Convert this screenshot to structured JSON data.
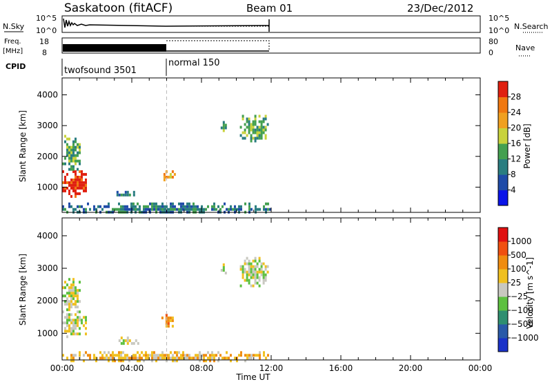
{
  "header": {
    "radar": "Saskatoon (fitACF)",
    "beam": "Beam 01",
    "date": "23/Dec/2012"
  },
  "noise_panel": {
    "left_label": "N.Sky",
    "right_label": "N.Search",
    "left_ticks": [
      "10^5",
      "10^0"
    ],
    "right_ticks": [
      "10^5",
      "10^0"
    ]
  },
  "freq_panel": {
    "left_label_1": "Freq.",
    "left_label_2": "[MHz]",
    "right_label": "Nave",
    "left_ticks": [
      "18",
      "8"
    ],
    "right_ticks": [
      "80",
      "0"
    ]
  },
  "cpid": {
    "label": "CPID",
    "modes": [
      {
        "name": "twofsound 3501",
        "start_h": 0,
        "end_h": 6
      },
      {
        "name": "normal 150",
        "start_h": 6,
        "end_h": 12
      }
    ]
  },
  "chart_data": [
    {
      "type": "heatmap",
      "title": "Power",
      "xlabel": "Time UT",
      "ylabel": "Slant Range [km]",
      "x_ticks": [
        "00:00",
        "04:00",
        "08:00",
        "12:00",
        "16:00",
        "20:00",
        "00:00"
      ],
      "xlim_hours": [
        0,
        24
      ],
      "y_ticks": [
        1000,
        2000,
        3000,
        4000
      ],
      "ylim_km": [
        180,
        4550
      ],
      "colorbar": {
        "label": "Power [dB]",
        "ticks": [
          "4",
          "8",
          "12",
          "16",
          "20",
          "24",
          "28"
        ],
        "colors": [
          "#0a14e8",
          "#1f4ba8",
          "#2a7d80",
          "#44a050",
          "#c8d23c",
          "#f0a020",
          "#f07810",
          "#e02010"
        ]
      },
      "regions": [
        {
          "t0": 0.0,
          "t1": 1.4,
          "r0": 700,
          "r1": 1550,
          "level": 7
        },
        {
          "t0": 0.0,
          "t1": 1.0,
          "r0": 1600,
          "r1": 2700,
          "level": 3
        },
        {
          "t0": 3.0,
          "t1": 4.4,
          "r0": 700,
          "r1": 880,
          "level": 2
        },
        {
          "t0": 5.7,
          "t1": 6.5,
          "r0": 1200,
          "r1": 1550,
          "level": 5
        },
        {
          "t0": 9.1,
          "t1": 9.4,
          "r0": 2850,
          "r1": 3150,
          "level": 3
        },
        {
          "t0": 10.2,
          "t1": 11.8,
          "r0": 2500,
          "r1": 3350,
          "level": 3
        },
        {
          "t0": 0.0,
          "t1": 12.0,
          "r0": 180,
          "r1": 500,
          "level": 2
        }
      ]
    },
    {
      "type": "heatmap",
      "title": "Velocity",
      "xlabel": "Time UT",
      "ylabel": "Slant Range [km]",
      "x_ticks": [
        "00:00",
        "04:00",
        "08:00",
        "12:00",
        "16:00",
        "20:00",
        "00:00"
      ],
      "xlim_hours": [
        0,
        24
      ],
      "y_ticks": [
        1000,
        2000,
        3000,
        4000
      ],
      "ylim_km": [
        180,
        4550
      ],
      "colorbar": {
        "label": "Velocity [m s^-1]",
        "ticks": [
          "1000",
          "500",
          "100",
          "25",
          "−25",
          "−100",
          "−500",
          "−1000"
        ],
        "colors": [
          "#1a32c8",
          "#2a5aa8",
          "#2f8f70",
          "#5dc040",
          "#c8c8c0",
          "#f0c020",
          "#f08c10",
          "#f05010",
          "#e01010"
        ]
      },
      "regions": [
        {
          "t0": 0.0,
          "t1": 1.4,
          "r0": 900,
          "r1": 1700,
          "level": 4
        },
        {
          "t0": 0.0,
          "t1": 1.0,
          "r0": 1700,
          "r1": 2700,
          "level": 4
        },
        {
          "t0": 3.0,
          "t1": 4.4,
          "r0": 700,
          "r1": 900,
          "level": 4
        },
        {
          "t0": 5.7,
          "t1": 6.5,
          "r0": 1250,
          "r1": 1600,
          "level": 6
        },
        {
          "t0": 9.1,
          "t1": 9.4,
          "r0": 2850,
          "r1": 3150,
          "level": 4
        },
        {
          "t0": 10.2,
          "t1": 11.8,
          "r0": 2500,
          "r1": 3350,
          "level": 4
        },
        {
          "t0": 0.0,
          "t1": 12.0,
          "r0": 180,
          "r1": 450,
          "level": 5
        }
      ]
    }
  ]
}
